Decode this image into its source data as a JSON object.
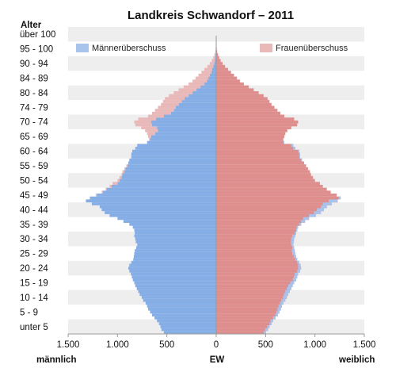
{
  "chart_data": {
    "type": "population-pyramid",
    "title": "Landkreis Schwandorf – 2011",
    "y_axis_title": "Alter",
    "x_axis_center_label": "EW",
    "x_axis_left_label": "männlich",
    "x_axis_right_label": "weiblich",
    "x_ticks": [
      {
        "value": -1500,
        "label": "1.500"
      },
      {
        "value": -1000,
        "label": "1.000"
      },
      {
        "value": -500,
        "label": "500"
      },
      {
        "value": 0,
        "label": "0"
      },
      {
        "value": 500,
        "label": "500"
      },
      {
        "value": 1000,
        "label": "1.000"
      },
      {
        "value": 1500,
        "label": "1.500"
      }
    ],
    "xlim": [
      -1500,
      1500
    ],
    "age_range": [
      0,
      102
    ],
    "age_group_labels": [
      "unter 5",
      "5 - 9",
      "10 - 14",
      "15 - 19",
      "20 - 24",
      "25 - 29",
      "30 - 34",
      "35 - 39",
      "40 - 44",
      "45 - 49",
      "50 - 54",
      "55 - 59",
      "60 - 64",
      "65 - 69",
      "70 - 74",
      "74 - 79",
      "80 - 84",
      "84 - 89",
      "90 - 94",
      "95 - 100",
      "über 100"
    ],
    "legend": [
      {
        "name": "Männerüberschuss",
        "color": "#a8c4ec",
        "placement": "top-left"
      },
      {
        "name": "Frauenüberschuss",
        "color": "#e9b9b9",
        "placement": "top-right"
      }
    ],
    "colors": {
      "male": "#86aee6",
      "female": "#df8e8e",
      "male_excess": "#a8c4ec",
      "female_excess": "#e9b9b9",
      "band": "#eeeeee",
      "axis": "#999999"
    },
    "ages": [
      0,
      1,
      2,
      3,
      4,
      5,
      6,
      7,
      8,
      9,
      10,
      11,
      12,
      13,
      14,
      15,
      16,
      17,
      18,
      19,
      20,
      21,
      22,
      23,
      24,
      25,
      26,
      27,
      28,
      29,
      30,
      31,
      32,
      33,
      34,
      35,
      36,
      37,
      38,
      39,
      40,
      41,
      42,
      43,
      44,
      45,
      46,
      47,
      48,
      49,
      50,
      51,
      52,
      53,
      54,
      55,
      56,
      57,
      58,
      59,
      60,
      61,
      62,
      63,
      64,
      65,
      66,
      67,
      68,
      69,
      70,
      71,
      72,
      73,
      74,
      75,
      76,
      77,
      78,
      79,
      80,
      81,
      82,
      83,
      84,
      85,
      86,
      87,
      88,
      89,
      90,
      91,
      92,
      93,
      94,
      95,
      96,
      97,
      98,
      99,
      100,
      101
    ],
    "male": [
      530,
      555,
      565,
      580,
      600,
      625,
      650,
      670,
      690,
      700,
      715,
      740,
      755,
      775,
      790,
      805,
      820,
      830,
      845,
      855,
      865,
      880,
      890,
      880,
      860,
      840,
      835,
      830,
      825,
      810,
      800,
      815,
      820,
      830,
      825,
      830,
      845,
      880,
      940,
      1000,
      1080,
      1130,
      1160,
      1180,
      1260,
      1320,
      1280,
      1210,
      1150,
      1110,
      1060,
      1000,
      980,
      960,
      950,
      930,
      920,
      900,
      890,
      880,
      860,
      860,
      850,
      820,
      800,
      700,
      670,
      660,
      620,
      590,
      600,
      650,
      660,
      610,
      530,
      460,
      430,
      410,
      380,
      350,
      320,
      280,
      240,
      200,
      160,
      120,
      95,
      80,
      65,
      50,
      40,
      30,
      22,
      15,
      10,
      7,
      5,
      4,
      3,
      2,
      1,
      1
    ],
    "female": [
      505,
      525,
      540,
      560,
      575,
      600,
      625,
      640,
      655,
      665,
      680,
      700,
      715,
      730,
      745,
      760,
      775,
      790,
      810,
      820,
      830,
      850,
      860,
      855,
      840,
      820,
      810,
      800,
      795,
      790,
      780,
      785,
      790,
      800,
      810,
      820,
      830,
      860,
      900,
      940,
      1010,
      1060,
      1090,
      1120,
      1170,
      1230,
      1260,
      1220,
      1160,
      1120,
      1080,
      1050,
      1000,
      980,
      960,
      950,
      930,
      910,
      890,
      870,
      850,
      850,
      840,
      800,
      780,
      690,
      680,
      690,
      700,
      720,
      760,
      820,
      830,
      790,
      690,
      650,
      620,
      590,
      560,
      540,
      520,
      480,
      430,
      380,
      330,
      280,
      240,
      210,
      180,
      150,
      120,
      90,
      65,
      45,
      30,
      18,
      10,
      6,
      3,
      2,
      1,
      1
    ]
  }
}
